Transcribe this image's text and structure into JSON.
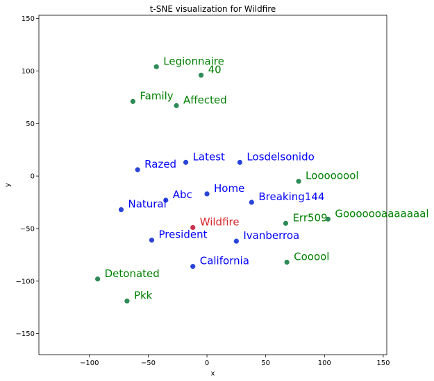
{
  "chart_data": {
    "type": "scatter",
    "title": "t-SNE visualization for Wildfire",
    "xlabel": "x",
    "ylabel": "y",
    "xlim": [
      -143,
      153
    ],
    "ylim": [
      -170,
      153
    ],
    "xticks": [
      -100,
      -50,
      0,
      50,
      100,
      150
    ],
    "yticks": [
      -150,
      -100,
      -50,
      0,
      50,
      100,
      150
    ],
    "xtick_labels": [
      "−100",
      "−50",
      "0",
      "50",
      "100",
      "150"
    ],
    "ytick_labels": [
      "−150",
      "−100",
      "−50",
      "0",
      "50",
      "100",
      "150"
    ],
    "grid": false,
    "colors": {
      "query": "#d62728",
      "query_point": "#c8334f",
      "cluster_blue": "#0000ff",
      "cluster_blue_point": "#2a45d8",
      "cluster_green": "#008000",
      "cluster_green_point": "#2e8b57"
    },
    "points": [
      {
        "label": "Wildfire",
        "x": -12,
        "y": -49,
        "group": "query"
      },
      {
        "label": "Latest",
        "x": -18,
        "y": 13,
        "group": "blue"
      },
      {
        "label": "Losdelsonido",
        "x": 28,
        "y": 13,
        "group": "blue"
      },
      {
        "label": "Razed",
        "x": -59,
        "y": 6,
        "group": "blue"
      },
      {
        "label": "Abc",
        "x": -35,
        "y": -23,
        "group": "blue"
      },
      {
        "label": "Home",
        "x": 0,
        "y": -17,
        "group": "blue"
      },
      {
        "label": "Breaking144",
        "x": 38,
        "y": -25,
        "group": "blue"
      },
      {
        "label": "Natural",
        "x": -73,
        "y": -32,
        "group": "blue"
      },
      {
        "label": "President",
        "x": -47,
        "y": -61,
        "group": "blue"
      },
      {
        "label": "Ivanberroa",
        "x": 25,
        "y": -62,
        "group": "blue"
      },
      {
        "label": "California",
        "x": -12,
        "y": -86,
        "group": "blue"
      },
      {
        "label": "Legionnaire",
        "x": -43,
        "y": 104,
        "group": "green"
      },
      {
        "label": "40",
        "x": -5,
        "y": 96,
        "group": "green"
      },
      {
        "label": "Family",
        "x": -63,
        "y": 71,
        "group": "green"
      },
      {
        "label": "Affected",
        "x": -26,
        "y": 67,
        "group": "green"
      },
      {
        "label": "Loooooool",
        "x": 78,
        "y": -5,
        "group": "green"
      },
      {
        "label": "Err509",
        "x": 67,
        "y": -45,
        "group": "green"
      },
      {
        "label": "Gooooooaaaaaaal",
        "x": 103,
        "y": -41,
        "group": "green"
      },
      {
        "label": "Cooool",
        "x": 68,
        "y": -82,
        "group": "green"
      },
      {
        "label": "Detonated",
        "x": -93,
        "y": -98,
        "group": "green"
      },
      {
        "label": "Pkk",
        "x": -68,
        "y": -119,
        "group": "green"
      }
    ]
  }
}
